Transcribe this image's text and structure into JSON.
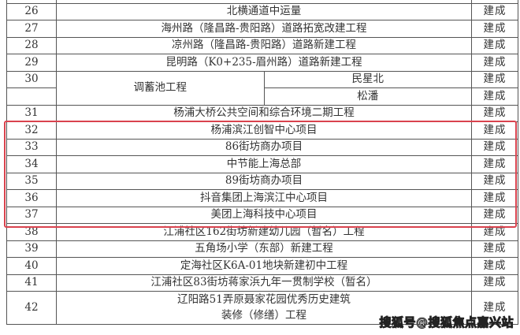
{
  "rows": [
    {
      "no": "",
      "name": "",
      "status": ""
    },
    {
      "no": "26",
      "name": "北横通道中运量",
      "status": "建成"
    },
    {
      "no": "27",
      "name": "海州路（隆昌路-贵阳路）道路拓宽改建工程",
      "status": "建成"
    },
    {
      "no": "28",
      "name": "凉州路（隆昌路-贵阳路）道路新建工程",
      "status": "建成"
    },
    {
      "no": "29",
      "name": "昆明路（K0+235-眉州路）道路新建工程",
      "status": "建成"
    },
    {
      "no": "30",
      "group": "调蓄池工程",
      "name": "民星北",
      "status": "建成"
    },
    {
      "no": "",
      "name": "松潘",
      "status": "建成"
    },
    {
      "no": "31",
      "name": "杨浦大桥公共空间和综合环境二期工程",
      "status": "建成"
    },
    {
      "no": "32",
      "name": "杨浦滨江创智中心项目",
      "status": "建成"
    },
    {
      "no": "33",
      "name": "86街坊商办项目",
      "status": "建成"
    },
    {
      "no": "34",
      "name": "中节能上海总部",
      "status": "建成"
    },
    {
      "no": "35",
      "name": "89街坊商办项目",
      "status": "建成"
    },
    {
      "no": "36",
      "name": "抖音集团上海滨江中心项目",
      "status": "建成"
    },
    {
      "no": "37",
      "name": "美团上海科技中心项目",
      "status": "建成"
    },
    {
      "no": "38",
      "name": "江浦社区162街坊新建幼儿园（暂名）工程",
      "status": "建成"
    },
    {
      "no": "39",
      "name": "五角场小学（东部）新建工程",
      "status": "建成"
    },
    {
      "no": "40",
      "name": "定海社区K6A-01地块新建初中工程",
      "status": "建成"
    },
    {
      "no": "41",
      "name": "江浦社区83街坊蒋家浜九年一贯制学校（暂名）",
      "status": "建成"
    },
    {
      "no": "42",
      "name": "辽阳路51弄原聂家花园优秀历史建筑",
      "name2": "装修（修缮）工程",
      "status": "建成"
    }
  ],
  "highlight_color": "#d9434e",
  "watermark": "搜狐号@搜狐焦点嘉兴站"
}
